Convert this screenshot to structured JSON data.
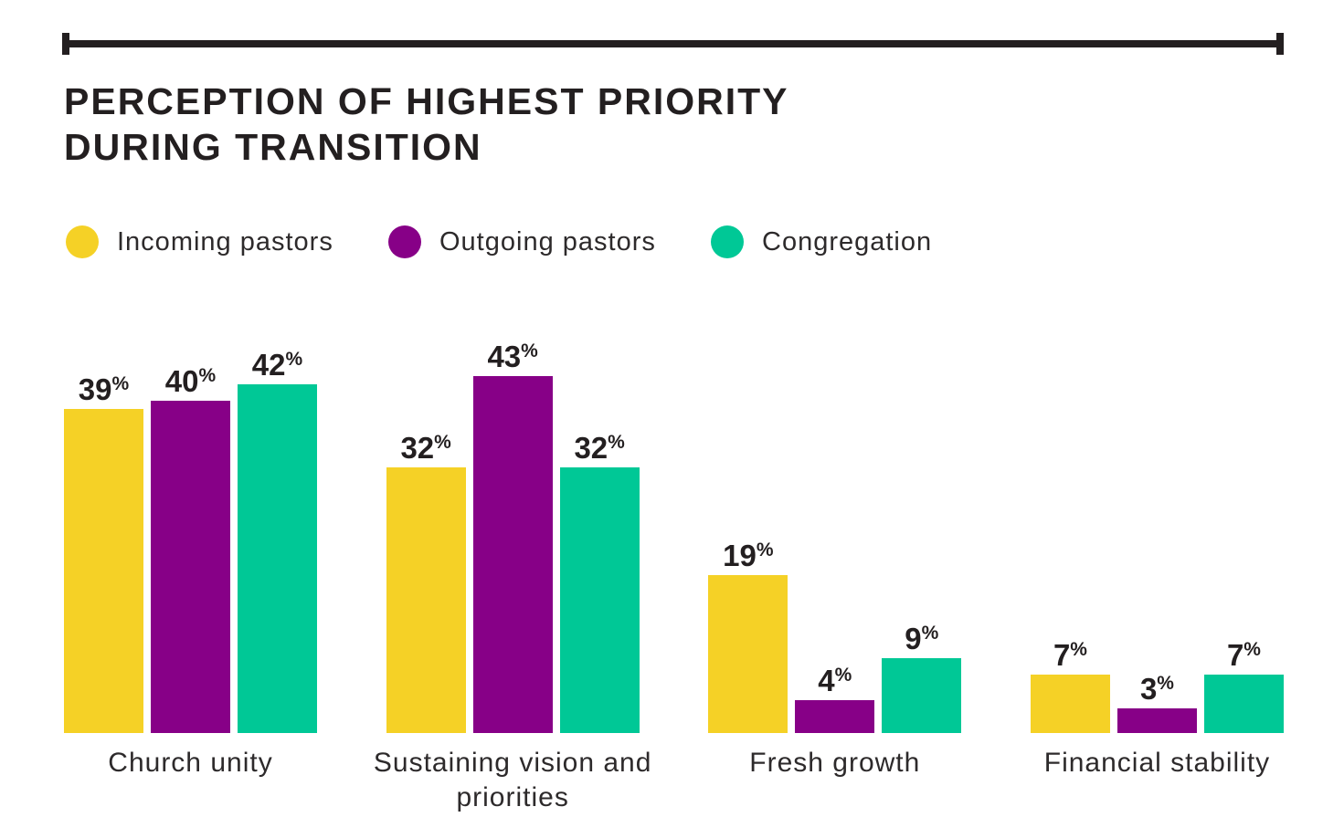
{
  "header": {
    "title_line1": "PERCEPTION OF HIGHEST PRIORITY",
    "title_line2": "DURING TRANSITION"
  },
  "chart_data": {
    "type": "bar",
    "title": "PERCEPTION OF HIGHEST PRIORITY DURING TRANSITION",
    "unit": "%",
    "categories": [
      "Church unity",
      "Sustaining vision and priorities",
      "Fresh growth",
      "Financial stability"
    ],
    "series": [
      {
        "name": "Incoming pastors",
        "color": "#F5D126",
        "values": [
          39,
          32,
          19,
          7
        ]
      },
      {
        "name": "Outgoing pastors",
        "color": "#870087",
        "values": [
          40,
          43,
          4,
          3
        ]
      },
      {
        "name": "Congregation",
        "color": "#00C896",
        "values": [
          42,
          32,
          9,
          7
        ]
      }
    ],
    "ylim": [
      0,
      45
    ],
    "grid": false,
    "axis_lines": false,
    "legend_position": "top-left",
    "value_labels": "above-bars",
    "text_color": "#231F20"
  }
}
